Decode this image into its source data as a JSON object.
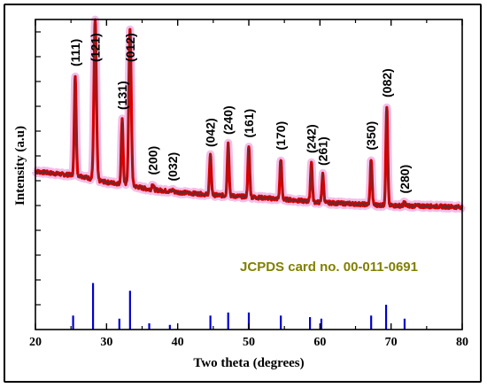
{
  "chart_data": {
    "type": "line",
    "xlabel": "Two theta (degrees)",
    "ylabel": "Intensity (a.u)",
    "xlim": [
      20,
      80
    ],
    "x_ticks": [
      20,
      30,
      40,
      50,
      60,
      70,
      80
    ],
    "y_minor_tick_count": 12,
    "grid": false,
    "colors": {
      "pattern": "#e00000",
      "pattern_halo": "#e88bd6",
      "pattern_core": "#6b2a2a",
      "reference_lines": "#0000cc",
      "card_text": "#808000",
      "frame": "#000000"
    },
    "pattern": {
      "baseline": [
        [
          20,
          0.51
        ],
        [
          22,
          0.505
        ],
        [
          24,
          0.5
        ],
        [
          26,
          0.498
        ],
        [
          28,
          0.485
        ],
        [
          30,
          0.475
        ],
        [
          32,
          0.47
        ],
        [
          34,
          0.462
        ],
        [
          36,
          0.452
        ],
        [
          38,
          0.448
        ],
        [
          40,
          0.443
        ],
        [
          45,
          0.434
        ],
        [
          50,
          0.428
        ],
        [
          55,
          0.42
        ],
        [
          60,
          0.41
        ],
        [
          65,
          0.405
        ],
        [
          70,
          0.4
        ],
        [
          75,
          0.398
        ],
        [
          80,
          0.395
        ]
      ],
      "peaks": [
        {
          "x": 25.6,
          "y": 0.82,
          "label": "(111)"
        },
        {
          "x": 28.4,
          "y": 1.0,
          "label": "(121)"
        },
        {
          "x": 32.2,
          "y": 0.68,
          "label": "(131)"
        },
        {
          "x": 33.3,
          "y": 0.97,
          "label": "(012)"
        },
        {
          "x": 36.5,
          "y": 0.47,
          "label": "(200)"
        },
        {
          "x": 39.3,
          "y": 0.45,
          "label": "(032)"
        },
        {
          "x": 44.6,
          "y": 0.56,
          "label": "(042)"
        },
        {
          "x": 47.1,
          "y": 0.6,
          "label": "(240)"
        },
        {
          "x": 50.0,
          "y": 0.59,
          "label": "(161)"
        },
        {
          "x": 54.5,
          "y": 0.55,
          "label": "(170)"
        },
        {
          "x": 58.8,
          "y": 0.54,
          "label": "(242)"
        },
        {
          "x": 60.4,
          "y": 0.5,
          "label": "(261)"
        },
        {
          "x": 67.2,
          "y": 0.55,
          "label": "(350)"
        },
        {
          "x": 69.4,
          "y": 0.72,
          "label": "(082)"
        },
        {
          "x": 71.9,
          "y": 0.41,
          "label": "(280)"
        }
      ]
    },
    "reference": {
      "label": "JCPDS card no. 00-011-0691",
      "lines": [
        {
          "x": 25.3,
          "h": 0.045
        },
        {
          "x": 28.1,
          "h": 0.15
        },
        {
          "x": 31.8,
          "h": 0.035
        },
        {
          "x": 33.3,
          "h": 0.125
        },
        {
          "x": 36.0,
          "h": 0.02
        },
        {
          "x": 38.9,
          "h": 0.015
        },
        {
          "x": 44.6,
          "h": 0.045
        },
        {
          "x": 47.1,
          "h": 0.055
        },
        {
          "x": 50.0,
          "h": 0.055
        },
        {
          "x": 54.5,
          "h": 0.045
        },
        {
          "x": 58.6,
          "h": 0.04
        },
        {
          "x": 60.2,
          "h": 0.035
        },
        {
          "x": 67.2,
          "h": 0.045
        },
        {
          "x": 69.3,
          "h": 0.08
        },
        {
          "x": 71.9,
          "h": 0.035
        }
      ]
    }
  }
}
